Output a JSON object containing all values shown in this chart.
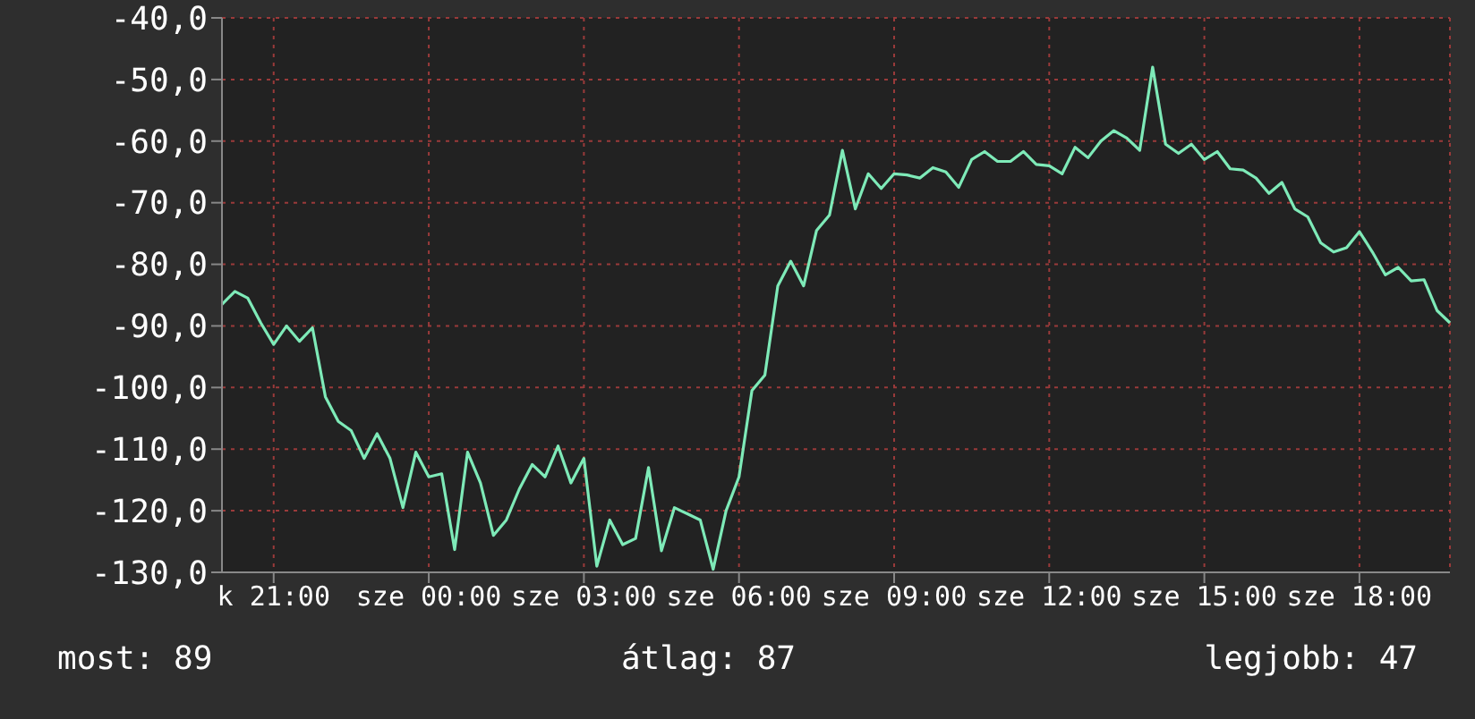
{
  "chart_data": {
    "type": "line",
    "categories": [
      null,
      null,
      null,
      null,
      "k 21:00",
      null,
      null,
      null,
      null,
      null,
      null,
      null,
      null,
      null,
      null,
      null,
      "sze 00:00",
      null,
      null,
      null,
      null,
      null,
      null,
      null,
      null,
      null,
      null,
      null,
      "sze 03:00",
      null,
      null,
      null,
      null,
      null,
      null,
      null,
      null,
      null,
      null,
      null,
      "sze 06:00",
      null,
      null,
      null,
      null,
      null,
      null,
      null,
      null,
      null,
      null,
      null,
      "sze 09:00",
      null,
      null,
      null,
      null,
      null,
      null,
      null,
      null,
      null,
      null,
      null,
      "sze 12:00",
      null,
      null,
      null,
      null,
      null,
      null,
      null,
      null,
      null,
      null,
      null,
      "sze 15:00",
      null,
      null,
      null,
      null,
      null,
      null,
      null,
      null,
      null,
      null,
      null,
      "sze 18:00",
      null,
      null,
      null,
      null,
      null,
      null,
      null
    ],
    "series": [
      {
        "color": "#7eeab8",
        "values": [
          -86.5,
          -84.4,
          -85.5,
          -89.5,
          -93,
          -90,
          -92.5,
          -90.3,
          -101.5,
          -105.5,
          -107,
          -111.5,
          -107.5,
          -111.5,
          -119.5,
          -110.5,
          -114.5,
          -114,
          -126.3,
          -110.5,
          -115.5,
          -124,
          -121.5,
          -116.5,
          -112.5,
          -114.5,
          -109.5,
          -115.5,
          -111.5,
          -129,
          -121.5,
          -125.5,
          -124.5,
          -113,
          -126.5,
          -119.5,
          -120.5,
          -121.5,
          -129.5,
          -120,
          -114.5,
          -100.5,
          -98,
          -83.5,
          -79.5,
          -83.5,
          -74.5,
          -72,
          -61.5,
          -71,
          -65.3,
          -67.7,
          -65.3,
          -65.5,
          -66,
          -64.3,
          -65,
          -67.5,
          -63,
          -61.7,
          -63.3,
          -63.3,
          -61.7,
          -63.8,
          -64,
          -65.3,
          -61,
          -62.7,
          -60,
          -58.3,
          -59.5,
          -61.5,
          -48,
          -60.5,
          -62,
          -60.5,
          -63,
          -61.7,
          -64.5,
          -64.7,
          -66,
          -68.5,
          -66.7,
          -71,
          -72.3,
          -76.5,
          -78,
          -77.3,
          -74.7,
          -78,
          -81.7,
          -80.5,
          -82.7,
          -82.5,
          -87.5,
          -89.5
        ]
      }
    ],
    "ylim": [
      -130,
      -40
    ],
    "yticks": [
      {
        "value": -130,
        "label": "-130,0"
      },
      {
        "value": -120,
        "label": "-120,0"
      },
      {
        "value": -110,
        "label": "-110,0"
      },
      {
        "value": -100,
        "label": "-100,0"
      },
      {
        "value": -90,
        "label": "-90,0"
      },
      {
        "value": -80,
        "label": "-80,0"
      },
      {
        "value": -70,
        "label": "-70,0"
      },
      {
        "value": -60,
        "label": "-60,0"
      },
      {
        "value": -50,
        "label": "-50,0"
      },
      {
        "value": -40,
        "label": "-40,0"
      }
    ],
    "grid": true,
    "legend": false,
    "marker": "none",
    "line_style": "solid",
    "annotations": [
      "most: 89",
      "átlag: 87",
      "legjobb: 47"
    ]
  }
}
